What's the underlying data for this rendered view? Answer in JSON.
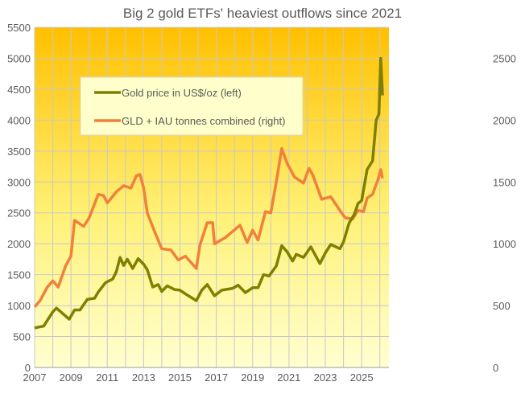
{
  "chart_data": {
    "type": "line",
    "title": "Big 2 gold ETFs' heaviest outflows  since 2021",
    "xlabel": "",
    "ylabel_left": "",
    "ylabel_right": "",
    "xlim": [
      2007,
      2026.5
    ],
    "ylim_left": [
      0,
      5500
    ],
    "ylim_right": [
      0,
      2750
    ],
    "x_ticks": [
      "2007",
      "2009",
      "2011",
      "2013",
      "2015",
      "2017",
      "2019",
      "2021",
      "2023",
      "2025"
    ],
    "y_left_ticks": [
      "0",
      "500",
      "1000",
      "1500",
      "2000",
      "2500",
      "3000",
      "3500",
      "4000",
      "4500",
      "5000",
      "5500"
    ],
    "y_right_ticks": [
      "0",
      "500",
      "1000",
      "1500",
      "2000",
      "2500"
    ],
    "grid": true,
    "legend_position": "upper-left-inset",
    "series": [
      {
        "name": "Gold price in US$/oz (left)",
        "axis": "left",
        "color": "#7F7F00",
        "x": [
          2007.0,
          2007.5,
          2008.0,
          2008.2,
          2008.75,
          2008.9,
          2009.2,
          2009.5,
          2009.9,
          2010.3,
          2010.5,
          2010.9,
          2011.3,
          2011.5,
          2011.7,
          2011.9,
          2012.1,
          2012.4,
          2012.7,
          2013.0,
          2013.2,
          2013.5,
          2013.8,
          2014.0,
          2014.3,
          2014.7,
          2015.0,
          2015.3,
          2015.9,
          2016.2,
          2016.5,
          2016.9,
          2017.3,
          2017.9,
          2018.2,
          2018.6,
          2019.0,
          2019.3,
          2019.6,
          2019.9,
          2020.3,
          2020.6,
          2020.9,
          2021.2,
          2021.4,
          2021.8,
          2022.2,
          2022.7,
          2023.0,
          2023.3,
          2023.8,
          2024.0,
          2024.3,
          2024.6,
          2024.8,
          2025.0,
          2025.3,
          2025.6,
          2025.8,
          2025.95,
          2026.05,
          2026.15
        ],
        "y": [
          640,
          670,
          900,
          960,
          820,
          780,
          930,
          930,
          1100,
          1120,
          1220,
          1370,
          1430,
          1550,
          1780,
          1650,
          1750,
          1600,
          1760,
          1670,
          1580,
          1300,
          1340,
          1230,
          1320,
          1260,
          1250,
          1190,
          1080,
          1250,
          1340,
          1160,
          1250,
          1280,
          1330,
          1210,
          1290,
          1290,
          1500,
          1480,
          1640,
          1970,
          1870,
          1720,
          1830,
          1780,
          1950,
          1680,
          1850,
          1990,
          1920,
          2030,
          2330,
          2480,
          2650,
          2700,
          3200,
          3340,
          4000,
          4100,
          5000,
          4400
        ]
      },
      {
        "name": "GLD + IAU tonnes combined (right)",
        "axis": "right",
        "color": "#F0803C",
        "x": [
          2007.0,
          2007.3,
          2007.7,
          2008.0,
          2008.3,
          2008.7,
          2009.0,
          2009.2,
          2009.7,
          2010.0,
          2010.5,
          2010.8,
          2011.0,
          2011.5,
          2011.9,
          2012.3,
          2012.6,
          2012.8,
          2013.0,
          2013.2,
          2013.6,
          2014.0,
          2014.5,
          2014.9,
          2015.3,
          2015.9,
          2016.1,
          2016.5,
          2016.8,
          2016.9,
          2017.5,
          2017.9,
          2018.3,
          2018.7,
          2019.0,
          2019.3,
          2019.7,
          2020.0,
          2020.3,
          2020.6,
          2020.9,
          2021.3,
          2021.8,
          2022.1,
          2022.3,
          2022.8,
          2023.3,
          2023.8,
          2024.1,
          2024.5,
          2024.8,
          2025.1,
          2025.3,
          2025.6,
          2025.9,
          2026.05,
          2026.15
        ],
        "y": [
          490,
          540,
          650,
          700,
          650,
          820,
          900,
          1190,
          1140,
          1210,
          1400,
          1390,
          1330,
          1420,
          1470,
          1450,
          1550,
          1560,
          1450,
          1250,
          1100,
          960,
          950,
          870,
          900,
          800,
          990,
          1170,
          1170,
          1000,
          1050,
          1100,
          1150,
          1010,
          1110,
          1030,
          1260,
          1250,
          1500,
          1770,
          1650,
          1540,
          1490,
          1610,
          1560,
          1360,
          1380,
          1270,
          1210,
          1200,
          1270,
          1260,
          1370,
          1400,
          1520,
          1600,
          1530
        ]
      }
    ]
  }
}
